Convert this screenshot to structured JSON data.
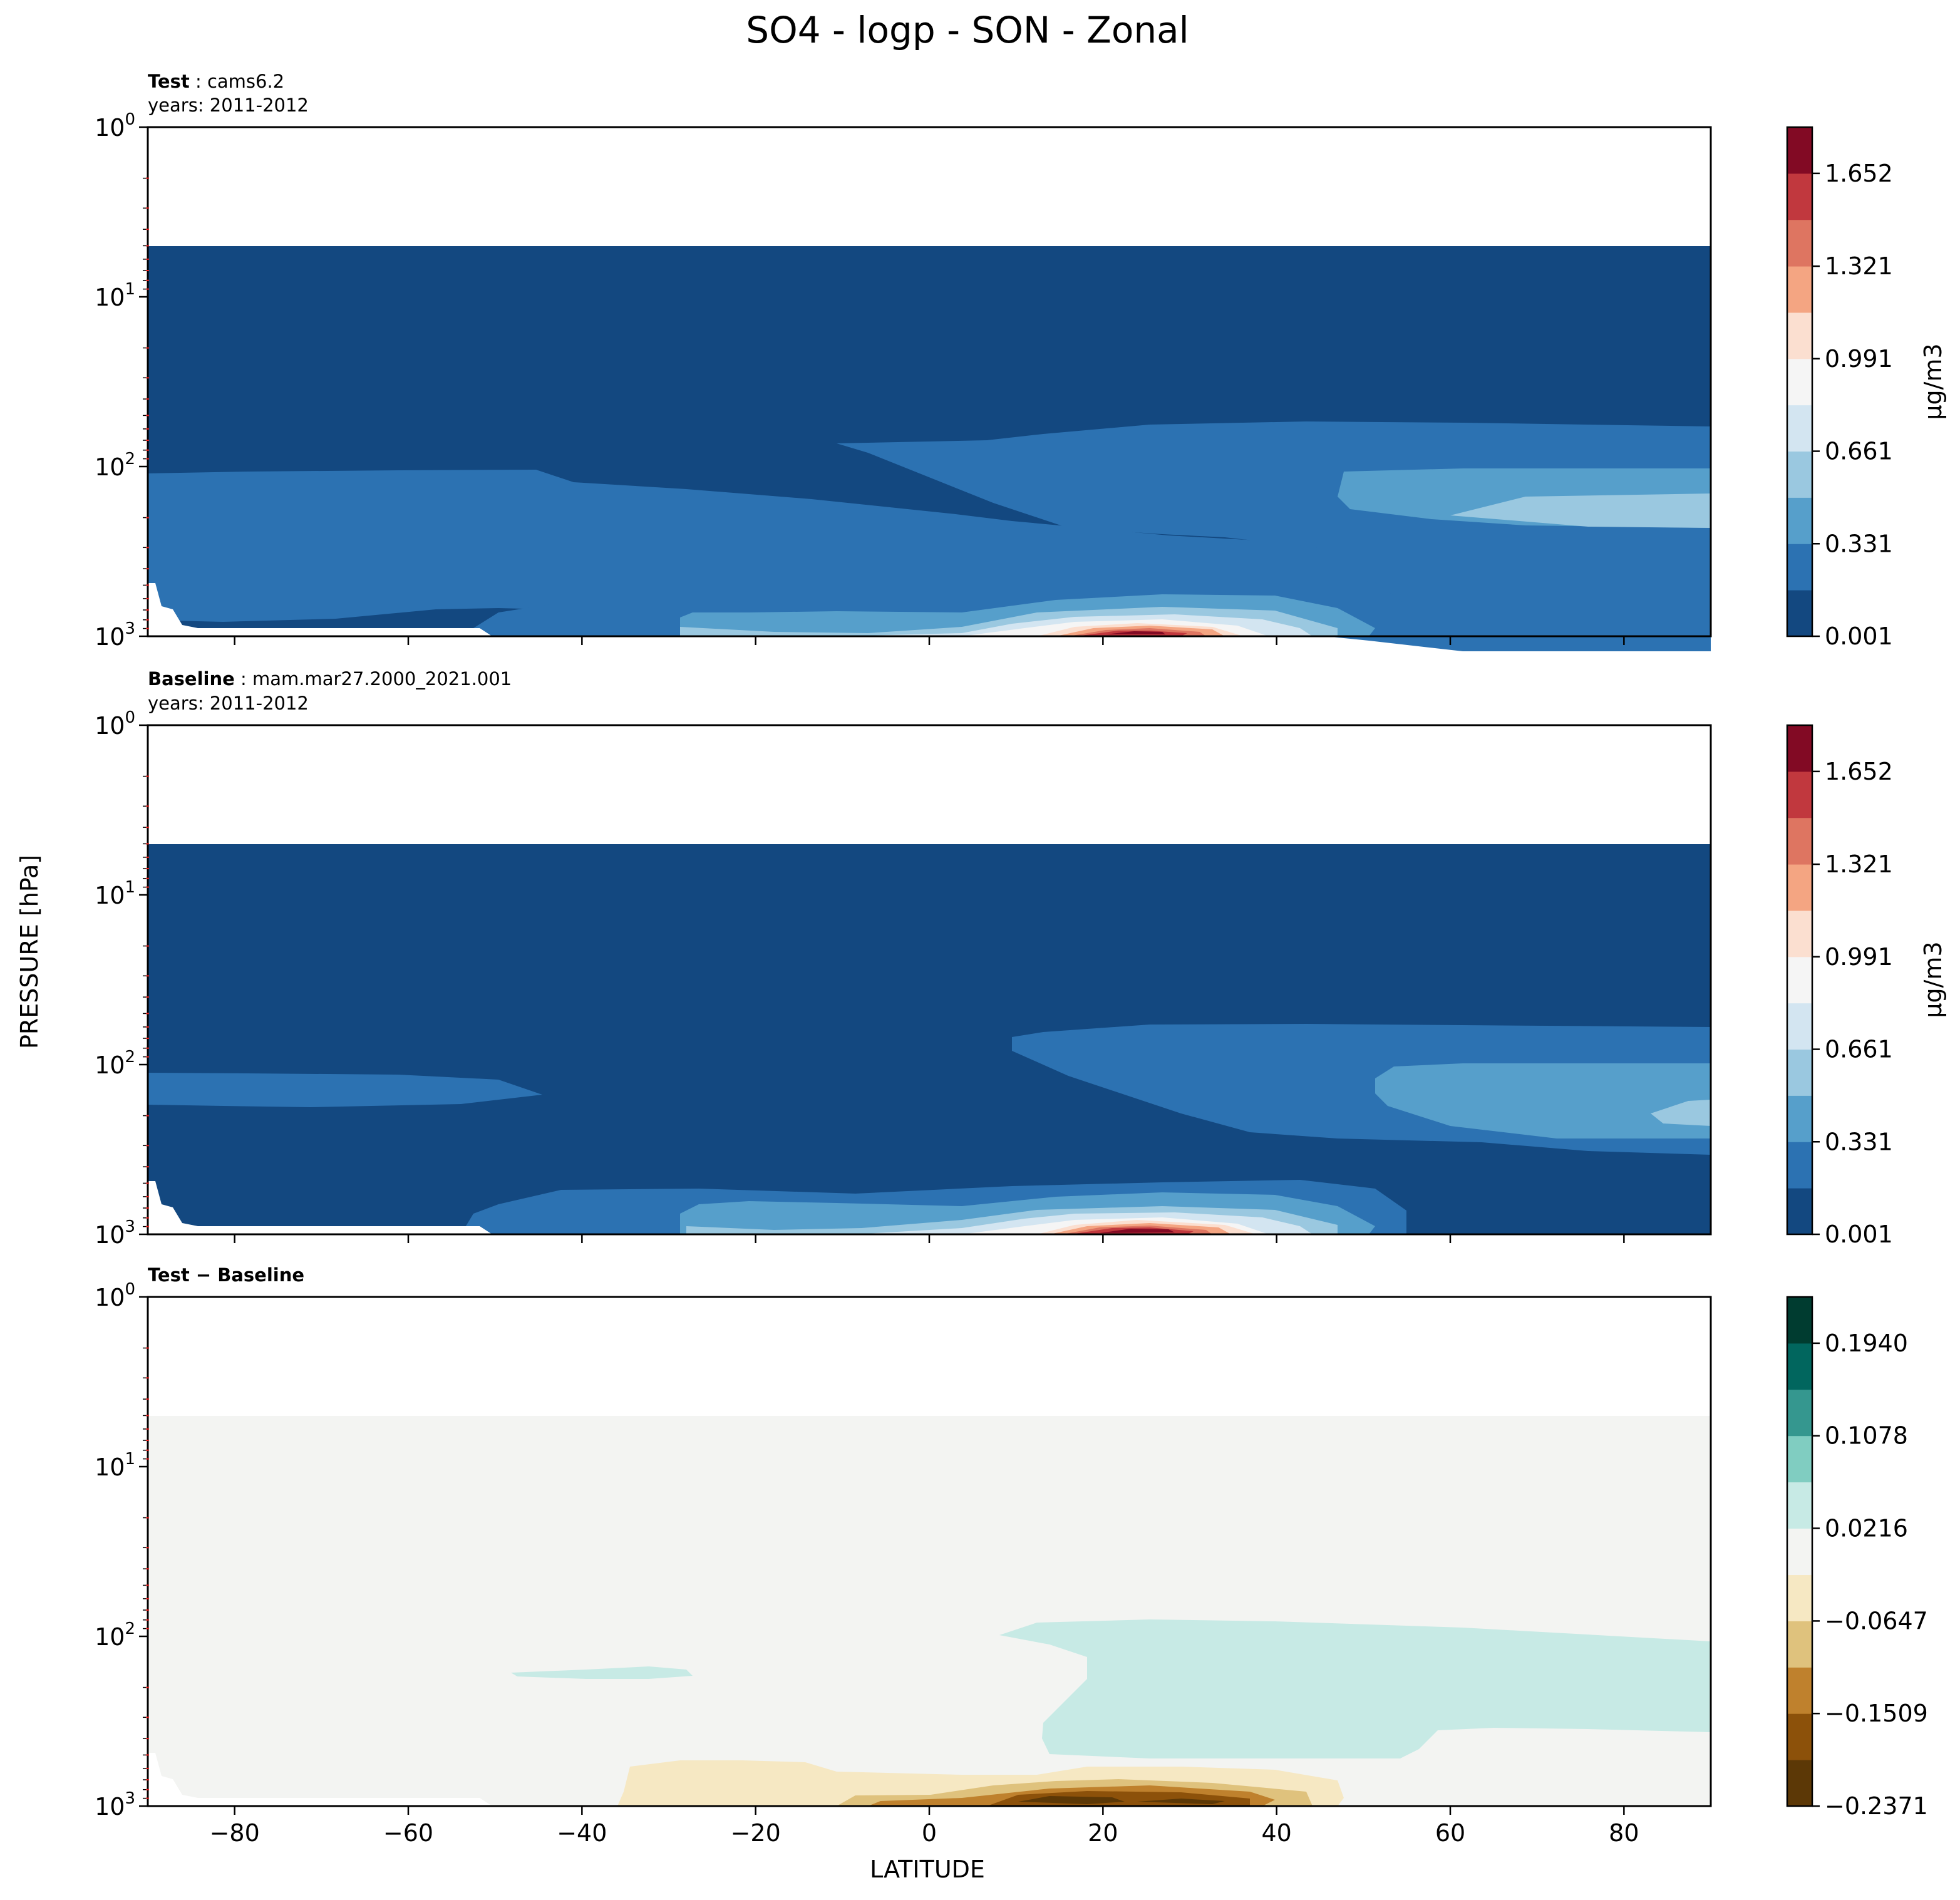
{
  "title": "SO4 - logp - SON - Zonal",
  "ylabel": "PRESSURE [hPa]",
  "xlabel": "LATITUDE",
  "chart_data": [
    {
      "type": "heatmap",
      "panel": "test",
      "label_bold": "Test",
      "label_rest": ": cams6.2",
      "years": "years: 2011-2012",
      "colorbar_label": "µg/m3",
      "colorbar_ticks": [
        "0.001",
        "0.331",
        "0.661",
        "0.991",
        "1.321",
        "1.652"
      ],
      "colorbar_levels": [
        0.001,
        0.166,
        0.331,
        0.496,
        0.661,
        0.826,
        0.991,
        1.156,
        1.321,
        1.487,
        1.652,
        1.817
      ],
      "colors": [
        "#134880",
        "#2c72b2",
        "#569fcb",
        "#9ac8e0",
        "#d3e5f1",
        "#f5f5f5",
        "#fbdfd0",
        "#f4a582",
        "#de7561",
        "#c1383e",
        "#820a24"
      ],
      "xlim": [
        -90,
        90
      ],
      "ylim_hPa": [
        1000,
        1
      ],
      "x_ticks": [
        -80,
        -60,
        -40,
        -20,
        0,
        20,
        40,
        60,
        80
      ],
      "y_ticks": [
        "10^0",
        "10^1",
        "10^2",
        "10^3"
      ],
      "data_top_hPa": 5,
      "max_location": {
        "lat": 23,
        "hPa": 900,
        "value": 1.8
      }
    },
    {
      "type": "heatmap",
      "panel": "baseline",
      "label_bold": "Baseline",
      "label_rest": ": mam.mar27.2000_2021.001",
      "years": "years: 2011-2012",
      "colorbar_label": "µg/m3",
      "colorbar_ticks": [
        "0.001",
        "0.331",
        "0.661",
        "0.991",
        "1.321",
        "1.652"
      ],
      "colorbar_levels": [
        0.001,
        0.166,
        0.331,
        0.496,
        0.661,
        0.826,
        0.991,
        1.156,
        1.321,
        1.487,
        1.652,
        1.817
      ],
      "colors": [
        "#134880",
        "#2c72b2",
        "#569fcb",
        "#9ac8e0",
        "#d3e5f1",
        "#f5f5f5",
        "#fbdfd0",
        "#f4a582",
        "#de7561",
        "#c1383e",
        "#820a24"
      ],
      "xlim": [
        -90,
        90
      ],
      "ylim_hPa": [
        1000,
        1
      ],
      "x_ticks": [
        -80,
        -60,
        -40,
        -20,
        0,
        20,
        40,
        60,
        80
      ],
      "y_ticks": [
        "10^0",
        "10^1",
        "10^2",
        "10^3"
      ],
      "data_top_hPa": 5,
      "max_location": {
        "lat": 23,
        "hPa": 900,
        "value": 1.8
      }
    },
    {
      "type": "heatmap",
      "panel": "diff",
      "label_bold": "Test − Baseline",
      "label_rest": "",
      "years": "",
      "colorbar_label": "",
      "colorbar_ticks": [
        "−0.2371",
        "−0.1509",
        "−0.0647",
        "0.0216",
        "0.1078",
        "0.1940"
      ],
      "colorbar_levels": [
        -0.2371,
        -0.194,
        -0.1509,
        -0.1078,
        -0.0647,
        -0.0216,
        0.0216,
        0.0647,
        0.1078,
        0.1509,
        0.194,
        0.2371
      ],
      "colors": [
        "#5c3806",
        "#8c510a",
        "#bf812d",
        "#dfc27d",
        "#f6e8c3",
        "#f3f4f2",
        "#c7eae5",
        "#80cdc1",
        "#35978f",
        "#01665e",
        "#003c30"
      ],
      "xlim": [
        -90,
        90
      ],
      "ylim_hPa": [
        1000,
        1
      ],
      "x_ticks": [
        -80,
        -60,
        -40,
        -20,
        0,
        20,
        40,
        60,
        80
      ],
      "y_ticks": [
        "10^0",
        "10^1",
        "10^2",
        "10^3"
      ],
      "data_top_hPa": 5
    }
  ],
  "icons": {
    "minus_sign": "−"
  }
}
